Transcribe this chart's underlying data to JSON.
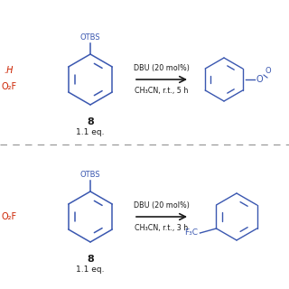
{
  "bg_color": "#ffffff",
  "blue": "#3a57b0",
  "black": "#1a1a1a",
  "red": "#cc2200",
  "gray": "#999999",
  "r1": {
    "arrow_line1": "DBU (20 mol%)",
    "arrow_line2": "CH₃CN, r.t., 5 h",
    "label_num": "8",
    "label_eq": "1.1 eq.",
    "left1": ".H",
    "left2": "O₂F"
  },
  "r2": {
    "arrow_line1": "DBU (20 mol%)",
    "arrow_line2": "CH₃CN, r.t., 3 h",
    "label_num": "8",
    "label_eq": "1.1 eq.",
    "left1": "O₂F"
  }
}
